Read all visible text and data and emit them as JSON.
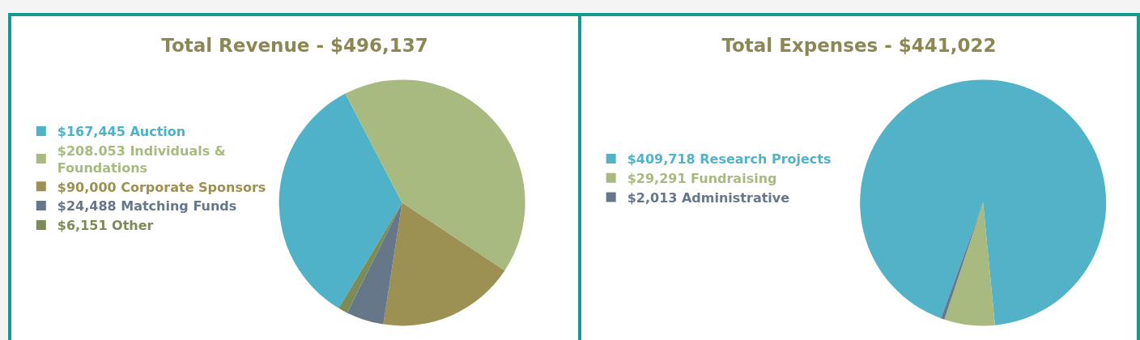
{
  "chart_data": [
    {
      "type": "pie",
      "title": "Total Revenue - $496,137",
      "legend": "left",
      "categories": [
        "$167,445 Auction",
        "$208.053 Individuals & Foundations",
        "$90,000 Corporate Sponsors",
        "$24,488 Matching Funds",
        "$6,151 Other"
      ],
      "values": [
        167445,
        208053,
        90000,
        24488,
        6151
      ],
      "colors": [
        "#4fb2c8",
        "#a9ba80",
        "#9c9052",
        "#667789",
        "#7d8b58"
      ]
    },
    {
      "type": "pie",
      "title": "Total Expenses - $441,022",
      "legend": "left",
      "categories": [
        "$409,718 Research Projects",
        "$29,291 Fundraising",
        "$2,013 Administrative"
      ],
      "values": [
        409718,
        29291,
        2013
      ],
      "colors": [
        "#52b3c8",
        "#a9ba80",
        "#667789"
      ]
    }
  ]
}
